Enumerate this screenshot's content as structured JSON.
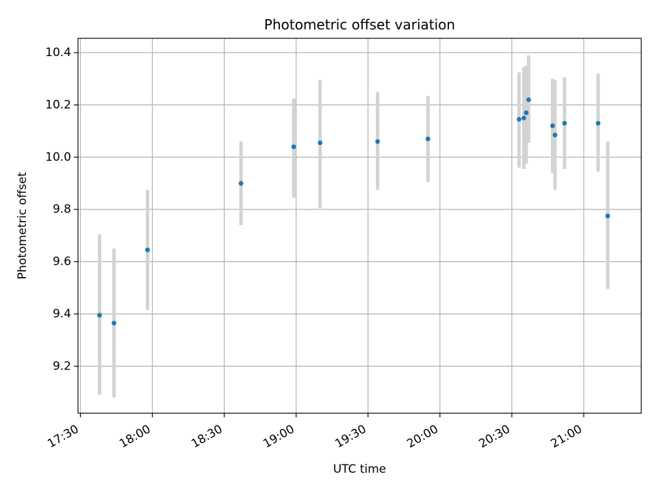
{
  "chart_data": {
    "type": "scatter",
    "title": "Photometric offset variation",
    "xlabel": "UTC time",
    "ylabel": "Photometric offset",
    "x_axis_kind": "time",
    "xlim": [
      "17:29",
      "21:24"
    ],
    "ylim": [
      9.02,
      10.455
    ],
    "x_ticks": [
      "17:30",
      "18:00",
      "18:30",
      "19:00",
      "19:30",
      "20:00",
      "20:30",
      "21:00"
    ],
    "y_ticks": [
      9.2,
      9.4,
      9.6,
      9.8,
      10.0,
      10.2,
      10.4
    ],
    "y_tick_labels": [
      "9.2",
      "9.4",
      "9.6",
      "9.8",
      "10.0",
      "10.2",
      "10.4"
    ],
    "grid": true,
    "legend": "none",
    "colors": {
      "point": "#1f77b4",
      "errorbar": "#d3d3d3",
      "grid": "#b0b0b0",
      "axes": "#000000"
    },
    "points": [
      {
        "time": "17:38",
        "y": 9.395,
        "yerr_low": 9.09,
        "yerr_high": 9.705
      },
      {
        "time": "17:44",
        "y": 9.365,
        "yerr_low": 9.08,
        "yerr_high": 9.65
      },
      {
        "time": "17:58",
        "y": 9.645,
        "yerr_low": 9.415,
        "yerr_high": 9.875
      },
      {
        "time": "18:37",
        "y": 9.9,
        "yerr_low": 9.74,
        "yerr_high": 10.06
      },
      {
        "time": "18:59",
        "y": 10.04,
        "yerr_low": 9.845,
        "yerr_high": 10.225
      },
      {
        "time": "19:10",
        "y": 10.055,
        "yerr_low": 9.805,
        "yerr_high": 10.295
      },
      {
        "time": "19:34",
        "y": 10.06,
        "yerr_low": 9.875,
        "yerr_high": 10.25
      },
      {
        "time": "19:55",
        "y": 10.07,
        "yerr_low": 9.905,
        "yerr_high": 10.235
      },
      {
        "time": "20:33",
        "y": 10.145,
        "yerr_low": 9.96,
        "yerr_high": 10.325
      },
      {
        "time": "20:35",
        "y": 10.15,
        "yerr_low": 9.955,
        "yerr_high": 10.345
      },
      {
        "time": "20:36",
        "y": 10.17,
        "yerr_low": 9.975,
        "yerr_high": 10.35
      },
      {
        "time": "20:37",
        "y": 10.22,
        "yerr_low": 10.055,
        "yerr_high": 10.39
      },
      {
        "time": "20:47",
        "y": 10.12,
        "yerr_low": 9.94,
        "yerr_high": 10.3
      },
      {
        "time": "20:48",
        "y": 10.085,
        "yerr_low": 9.875,
        "yerr_high": 10.295
      },
      {
        "time": "20:52",
        "y": 10.13,
        "yerr_low": 9.955,
        "yerr_high": 10.305
      },
      {
        "time": "21:06",
        "y": 10.13,
        "yerr_low": 9.945,
        "yerr_high": 10.32
      },
      {
        "time": "21:10",
        "y": 9.775,
        "yerr_low": 9.495,
        "yerr_high": 10.06
      }
    ]
  }
}
